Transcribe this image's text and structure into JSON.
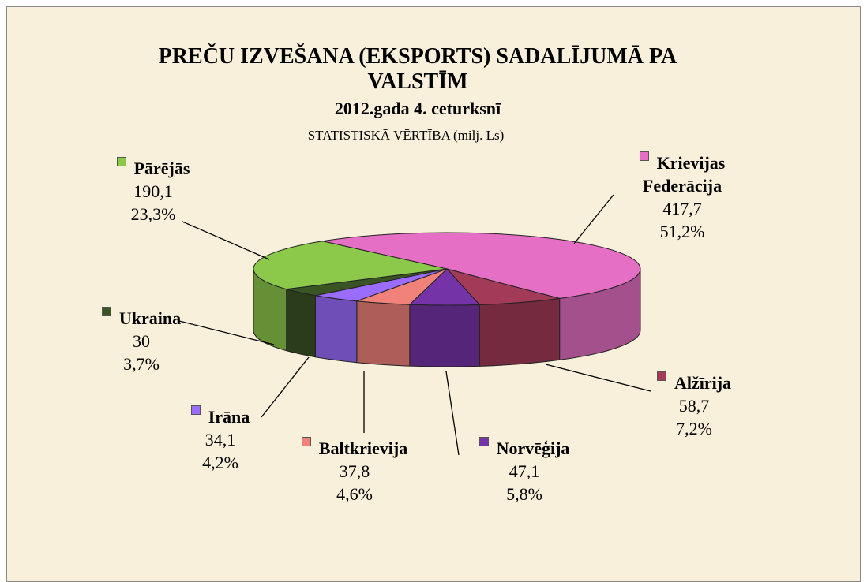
{
  "chart_data": {
    "type": "pie3d",
    "title": "PREČU IZVEŠANA (EKSPORTS)  SADALĪJUMĀ PA VALSTĪM",
    "subtitle": "2012.gada 4. ceturksnī",
    "unit_label": "STATISTISKĀ VĒRTĪBA (milj. Ls)",
    "categories": [
      "Krievijas Federācija",
      "Alžīrija",
      "Norvēģija",
      "Baltkrievija",
      "Irāna",
      "Ukraina",
      "Pārējās"
    ],
    "values": [
      417.7,
      58.7,
      47.1,
      37.8,
      34.1,
      30,
      190.1
    ],
    "value_labels": [
      "417,7",
      "58,7",
      "47,1",
      "37,8",
      "34,1",
      "30",
      "190,1"
    ],
    "shares": [
      51.2,
      7.2,
      5.8,
      4.6,
      4.2,
      3.7,
      23.3
    ],
    "share_labels": [
      "51,2%",
      "7,2%",
      "5,8%",
      "4,6%",
      "4,2%",
      "3,7%",
      "23,3%"
    ],
    "colors": [
      "#e46fc4",
      "#a33a58",
      "#7533a8",
      "#f0827a",
      "#9a6cff",
      "#3a5424",
      "#8cc84a"
    ]
  }
}
